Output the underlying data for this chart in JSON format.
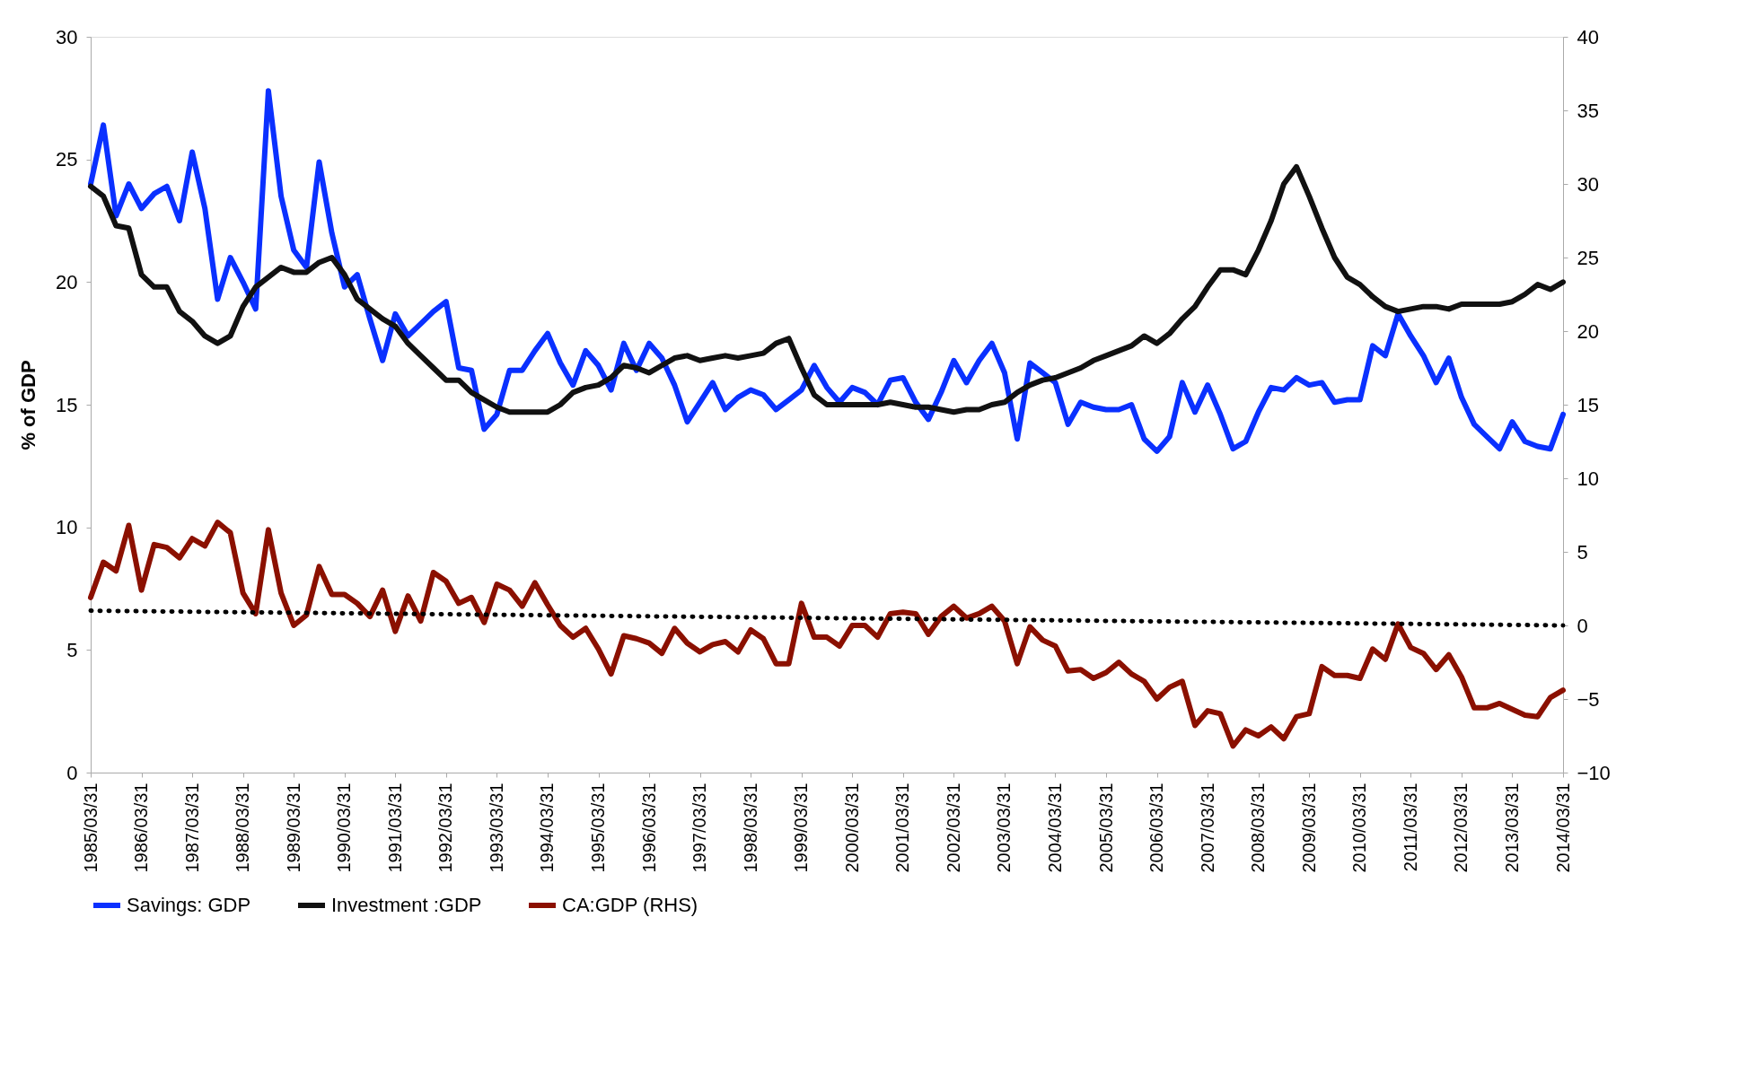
{
  "chart_data": {
    "type": "line",
    "ylabel": "% of GDP",
    "categories": [
      "1985/03/31",
      null,
      null,
      null,
      "1986/03/31",
      null,
      null,
      null,
      "1987/03/31",
      null,
      null,
      null,
      "1988/03/31",
      null,
      null,
      null,
      "1989/03/31",
      null,
      null,
      null,
      "1990/03/31",
      null,
      null,
      null,
      "1991/03/31",
      null,
      null,
      null,
      "1992/03/31",
      null,
      null,
      null,
      "1993/03/31",
      null,
      null,
      null,
      "1994/03/31",
      null,
      null,
      null,
      "1995/03/31",
      null,
      null,
      null,
      "1996/03/31",
      null,
      null,
      null,
      "1997/03/31",
      null,
      null,
      null,
      "1998/03/31",
      null,
      null,
      null,
      "1999/03/31",
      null,
      null,
      null,
      "2000/03/31",
      null,
      null,
      null,
      "2001/03/31",
      null,
      null,
      null,
      "2002/03/31",
      null,
      null,
      null,
      "2003/03/31",
      null,
      null,
      null,
      "2004/03/31",
      null,
      null,
      null,
      "2005/03/31",
      null,
      null,
      null,
      "2006/03/31",
      null,
      null,
      null,
      "2007/03/31",
      null,
      null,
      null,
      "2008/03/31",
      null,
      null,
      null,
      "2009/03/31",
      null,
      null,
      null,
      "2010/03/31",
      null,
      null,
      null,
      "2011/03/31",
      null,
      null,
      null,
      "2012/03/31",
      null,
      null,
      null,
      "2013/03/31",
      null,
      null,
      null,
      "2014/03/31"
    ],
    "series": [
      {
        "name": "Savings: GDP",
        "color": "#0a30ff",
        "values": [
          24.0,
          26.4,
          22.7,
          24.0,
          23.0,
          23.6,
          23.9,
          22.5,
          25.3,
          23.0,
          19.3,
          21.0,
          20.0,
          18.9,
          27.8,
          23.5,
          21.3,
          20.6,
          24.9,
          22.0,
          19.8,
          20.3,
          18.5,
          16.8,
          18.7,
          17.8,
          18.3,
          18.8,
          19.2,
          16.5,
          16.4,
          14.0,
          14.6,
          16.4,
          16.4,
          17.2,
          17.9,
          16.7,
          15.8,
          17.2,
          16.6,
          15.6,
          17.5,
          16.4,
          17.5,
          16.9,
          15.8,
          14.3,
          15.1,
          15.9,
          14.8,
          15.3,
          15.6,
          15.4,
          14.8,
          15.2,
          15.6,
          16.6,
          15.7,
          15.1,
          15.7,
          15.5,
          15.0,
          16.0,
          16.1,
          15.1,
          14.4,
          15.5,
          16.8,
          15.9,
          16.8,
          17.5,
          16.3,
          13.6,
          16.7,
          16.3,
          15.9,
          14.2,
          15.1,
          14.9,
          14.8,
          14.8,
          15.0,
          13.6,
          13.1,
          13.7,
          15.9,
          14.7,
          15.8,
          14.6,
          13.2,
          13.5,
          14.7,
          15.7,
          15.6,
          16.1,
          15.8,
          15.9,
          15.1,
          15.2,
          15.2,
          17.4,
          17.0,
          18.7,
          17.8,
          17.0,
          15.9,
          16.9,
          15.3,
          14.2,
          13.7,
          13.2,
          14.3,
          13.5,
          13.3,
          13.2,
          14.6
        ]
      },
      {
        "name": "Investment :GDP",
        "color": "#111111",
        "values": [
          23.9,
          23.5,
          22.3,
          22.2,
          20.3,
          19.8,
          19.8,
          18.8,
          18.4,
          17.8,
          17.5,
          17.8,
          19.0,
          19.8,
          20.2,
          20.6,
          20.4,
          20.4,
          20.8,
          21.0,
          20.3,
          19.3,
          18.9,
          18.5,
          18.2,
          17.5,
          17.0,
          16.5,
          16.0,
          16.0,
          15.5,
          15.2,
          14.9,
          14.7,
          14.7,
          14.7,
          14.7,
          15.0,
          15.5,
          15.7,
          15.8,
          16.1,
          16.6,
          16.5,
          16.3,
          16.6,
          16.9,
          17.0,
          16.8,
          16.9,
          17.0,
          16.9,
          17.0,
          17.1,
          17.5,
          17.7,
          16.5,
          15.4,
          15.0,
          15.0,
          15.0,
          15.0,
          15.0,
          15.1,
          15.0,
          14.9,
          14.9,
          14.8,
          14.7,
          14.8,
          14.8,
          15.0,
          15.1,
          15.5,
          15.8,
          16.0,
          16.1,
          16.3,
          16.5,
          16.8,
          17.0,
          17.2,
          17.4,
          17.8,
          17.5,
          17.9,
          18.5,
          19.0,
          19.8,
          20.5,
          20.5,
          20.3,
          21.3,
          22.5,
          24.0,
          24.7,
          23.5,
          22.2,
          21.0,
          20.2,
          19.9,
          19.4,
          19.0,
          18.8,
          18.9,
          19.0,
          19.0,
          18.9,
          19.1,
          19.1,
          19.1,
          19.1,
          19.2,
          19.5,
          19.9,
          19.7,
          20.0
        ]
      },
      {
        "name": "CA:GDP (RHS)",
        "color": "#8b1000",
        "axis": "y2",
        "values": [
          1.9,
          4.3,
          3.7,
          6.8,
          2.4,
          5.5,
          5.3,
          4.6,
          5.9,
          5.4,
          7.0,
          6.3,
          2.2,
          0.8,
          6.5,
          2.2,
          0.0,
          0.7,
          4.0,
          2.1,
          2.1,
          1.5,
          0.6,
          2.4,
          -0.4,
          2.0,
          0.3,
          3.6,
          3.0,
          1.5,
          1.9,
          0.2,
          2.8,
          2.4,
          1.3,
          2.9,
          1.4,
          0.0,
          -0.8,
          -0.2,
          -1.6,
          -3.3,
          -0.7,
          -0.9,
          -1.2,
          -1.9,
          -0.2,
          -1.2,
          -1.8,
          -1.3,
          -1.1,
          -1.8,
          -0.3,
          -0.9,
          -2.6,
          -2.6,
          1.5,
          -0.8,
          -0.8,
          -1.4,
          0.0,
          0.0,
          -0.8,
          0.8,
          0.9,
          0.8,
          -0.6,
          0.6,
          1.3,
          0.5,
          0.8,
          1.3,
          0.3,
          -2.6,
          -0.1,
          -1.0,
          -1.4,
          -3.1,
          -3.0,
          -3.6,
          -3.2,
          -2.5,
          -3.3,
          -3.8,
          -5.0,
          -4.2,
          -3.8,
          -6.8,
          -5.8,
          -6.0,
          -8.2,
          -7.1,
          -7.5,
          -6.9,
          -7.7,
          -6.2,
          -6.0,
          -2.8,
          -3.4,
          -3.4,
          -3.6,
          -1.6,
          -2.3,
          0.1,
          -1.5,
          -1.9,
          -3.0,
          -2.0,
          -3.5,
          -5.6,
          -5.6,
          -5.3,
          -5.7,
          -6.1,
          -6.2,
          -4.9,
          -4.4
        ]
      },
      {
        "type": "line",
        "color": "#000000",
        "axis": "y2",
        "line_style": "dotted",
        "x": [
          "1985/03/31",
          "2014/03/31"
        ],
        "values": [
          1.0,
          0.0
        ]
      }
    ],
    "ylim": [
      0,
      30
    ],
    "yticks": [
      0,
      5,
      10,
      15,
      20,
      25,
      30
    ],
    "y2lim": [
      -10,
      40
    ],
    "y2ticks": [
      -10,
      -5,
      0,
      5,
      10,
      15,
      20,
      25,
      30,
      35,
      40
    ],
    "grid": false,
    "legend": "bottom",
    "line_style": "solid",
    "marker": "none"
  }
}
